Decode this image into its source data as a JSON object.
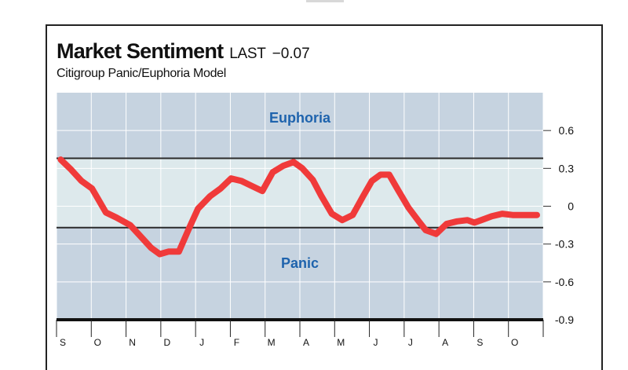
{
  "header": {
    "title": "Market Sentiment",
    "last_label": "LAST",
    "last_value": "−0.07",
    "subtitle": "Citigroup Panic/Euphoria Model"
  },
  "chart_data": {
    "type": "line",
    "title": "Market Sentiment",
    "subtitle": "Citigroup Panic/Euphoria Model",
    "xlabel": "",
    "ylabel": "",
    "ylim": [
      -0.9,
      0.9
    ],
    "yticks": [
      0.6,
      0.3,
      0,
      -0.3,
      -0.6,
      -0.9
    ],
    "ytick_labels": [
      "0.6",
      "0.3",
      "0",
      "-0.3",
      "-0.6",
      "-0.9"
    ],
    "categories": [
      "S",
      "O",
      "N",
      "D",
      "J",
      "F",
      "M",
      "A",
      "M",
      "J",
      "J",
      "A",
      "S",
      "O"
    ],
    "grid": true,
    "euphoria_threshold": 0.38,
    "panic_threshold": -0.17,
    "zone_labels": {
      "upper": "Euphoria",
      "lower": "Panic"
    },
    "colors": {
      "line": "#f03a3a",
      "zone_outer": "#c6d3e0",
      "zone_neutral": "#dde9ec",
      "zone_label": "#1e63ad",
      "threshold": "#2a2a2a"
    },
    "series": [
      {
        "x": [
          0,
          0.3,
          0.6,
          0.9,
          1.3,
          1.6,
          2.0,
          2.3,
          2.6,
          2.85,
          3.1,
          3.4,
          3.7,
          3.95,
          4.3,
          4.6,
          4.9,
          5.2,
          5.5,
          5.8,
          6.1,
          6.4,
          6.7,
          6.95,
          7.25,
          7.5,
          7.8,
          8.1,
          8.4,
          8.7,
          8.95,
          9.2,
          9.45,
          9.7,
          10.0,
          10.3,
          10.5,
          10.8,
          11.1,
          11.4,
          11.7,
          11.9,
          12.1,
          12.4,
          12.7,
          13.0,
          13.3,
          13.7
        ],
        "y": [
          0.37,
          0.29,
          0.2,
          0.14,
          -0.05,
          -0.09,
          -0.15,
          -0.24,
          -0.33,
          -0.38,
          -0.36,
          -0.36,
          -0.17,
          -0.02,
          0.08,
          0.14,
          0.22,
          0.2,
          0.16,
          0.12,
          0.27,
          0.32,
          0.35,
          0.3,
          0.21,
          0.08,
          -0.06,
          -0.11,
          -0.07,
          0.08,
          0.2,
          0.25,
          0.25,
          0.13,
          -0.01,
          -0.12,
          -0.19,
          -0.22,
          -0.14,
          -0.12,
          -0.11,
          -0.13,
          -0.11,
          -0.08,
          -0.06,
          -0.07,
          -0.07,
          -0.07
        ]
      }
    ]
  }
}
